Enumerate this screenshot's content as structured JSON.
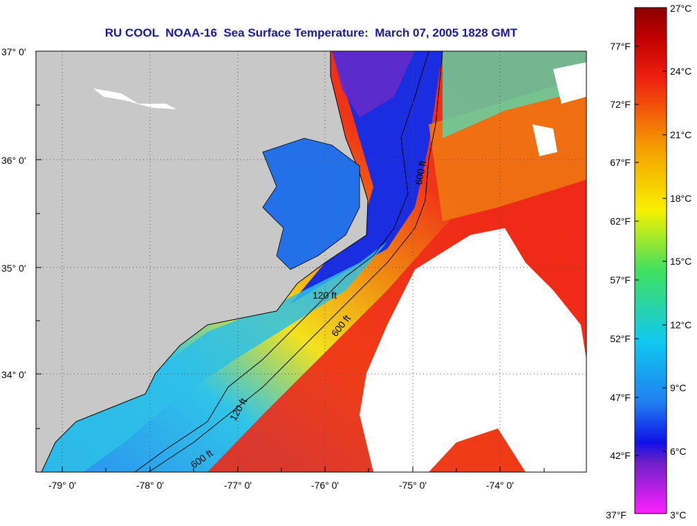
{
  "title": "RU COOL  NOAA-16  Sea Surface Temperature:  March 07, 2005 1828 GMT",
  "axes": {
    "lat_labels": [
      "37° 0'",
      "36° 0'",
      "35° 0'",
      "34° 0'"
    ],
    "lon_labels": [
      "-79° 0'",
      "-78° 0'",
      "-77° 0'",
      "-76° 0'",
      "-75° 0'",
      "-74° 0'"
    ]
  },
  "contours": {
    "label_120": "120 ft",
    "label_600": "600 ft"
  },
  "colorbar": {
    "celsius": [
      "27°C",
      "24°C",
      "21°C",
      "18°C",
      "15°C",
      "12°C",
      "9°C",
      "6°C",
      "3°C"
    ],
    "fahrenheit": [
      "77°F",
      "72°F",
      "67°F",
      "62°F",
      "57°F",
      "52°F",
      "47°F",
      "42°F",
      "37°F"
    ]
  },
  "colors": {
    "land": "#c8c8c8",
    "cloud": "#ffffff",
    "title": "#1515a8"
  }
}
